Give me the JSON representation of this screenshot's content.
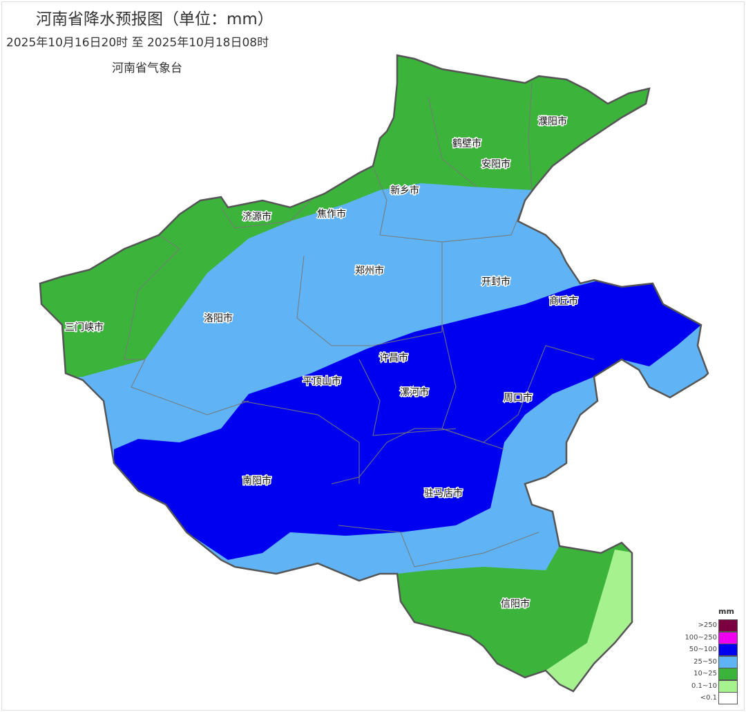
{
  "title": "河南省降水预报图（单位：mm）",
  "period": "2025年10月16日20时  至  2025年10月18日08时",
  "issuer": "河南省气象台",
  "cities": [
    "濮阳市",
    "鹤壁市",
    "安阳市",
    "新乡市",
    "济源市",
    "焦作市",
    "郑州市",
    "开封市",
    "商丘市",
    "三门峡市",
    "洛阳市",
    "许昌市",
    "平顶山市",
    "漯河市",
    "周口市",
    "南阳市",
    "驻马店市",
    "信阳市"
  ],
  "legend": {
    "unit": "mm",
    "items": [
      {
        "label": ">250",
        "color": "#7a0040"
      },
      {
        "label": "100~250",
        "color": "#f000f0"
      },
      {
        "label": "50~100",
        "color": "#0000f0"
      },
      {
        "label": "25~50",
        "color": "#60b4f5"
      },
      {
        "label": "10~25",
        "color": "#3cb43c"
      },
      {
        "label": "0.1~10",
        "color": "#a6f28f"
      },
      {
        "label": "<0.1",
        "color": "#ffffff"
      }
    ]
  }
}
